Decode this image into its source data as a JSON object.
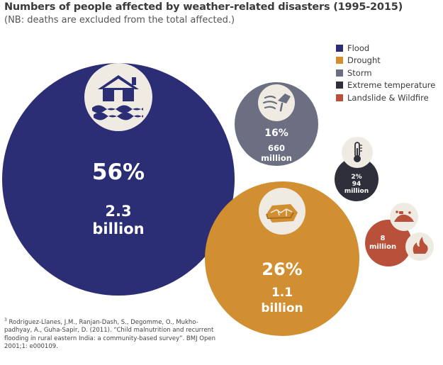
{
  "chart_data": {
    "type": "bubble",
    "title": "Numbers of people affected by weather-related disasters (1995-2015)",
    "subtitle": "(NB: deaths are excluded from the total affected.)",
    "series": [
      {
        "name": "Flood",
        "color": "#2b2d75",
        "percent": "56%",
        "value_line1": "2.3",
        "value_line2": "billion",
        "people_millions": 2300,
        "icon": "flooded-house-icon"
      },
      {
        "name": "Drought",
        "color": "#d18f32",
        "percent": "26%",
        "value_line1": "1.1",
        "value_line2": "billion",
        "people_millions": 1100,
        "icon": "cracked-earth-icon"
      },
      {
        "name": "Storm",
        "color": "#6c6f82",
        "percent": "16%",
        "value_line1": "660",
        "value_line2": "million",
        "people_millions": 660,
        "icon": "storm-wind-tree-icon"
      },
      {
        "name": "Extreme temperature",
        "color": "#2e2f3a",
        "percent": "2%",
        "value_line1": "94",
        "value_line2": "million",
        "people_millions": 94,
        "icon": "thermometer-icon"
      },
      {
        "name": "Landslide & Wildfire",
        "color": "#b8503a",
        "percent": "",
        "value_line1": "8",
        "value_line2": "million",
        "people_millions": 8,
        "icon": "landslide-and-fire-icon"
      }
    ],
    "legend_position": "top-right"
  },
  "footnote": {
    "marker": "3",
    "text": "Rodriguez-Llanes, J.M., Ranjan-Dash, S., Degomme, O., Mukho-padhyay, A., Guha-Sapir, D. (2011). “Child malnutrition and recurrent flooding in rural eastern India: a community-based survey”. BMJ Open 2001;1: e000109."
  }
}
